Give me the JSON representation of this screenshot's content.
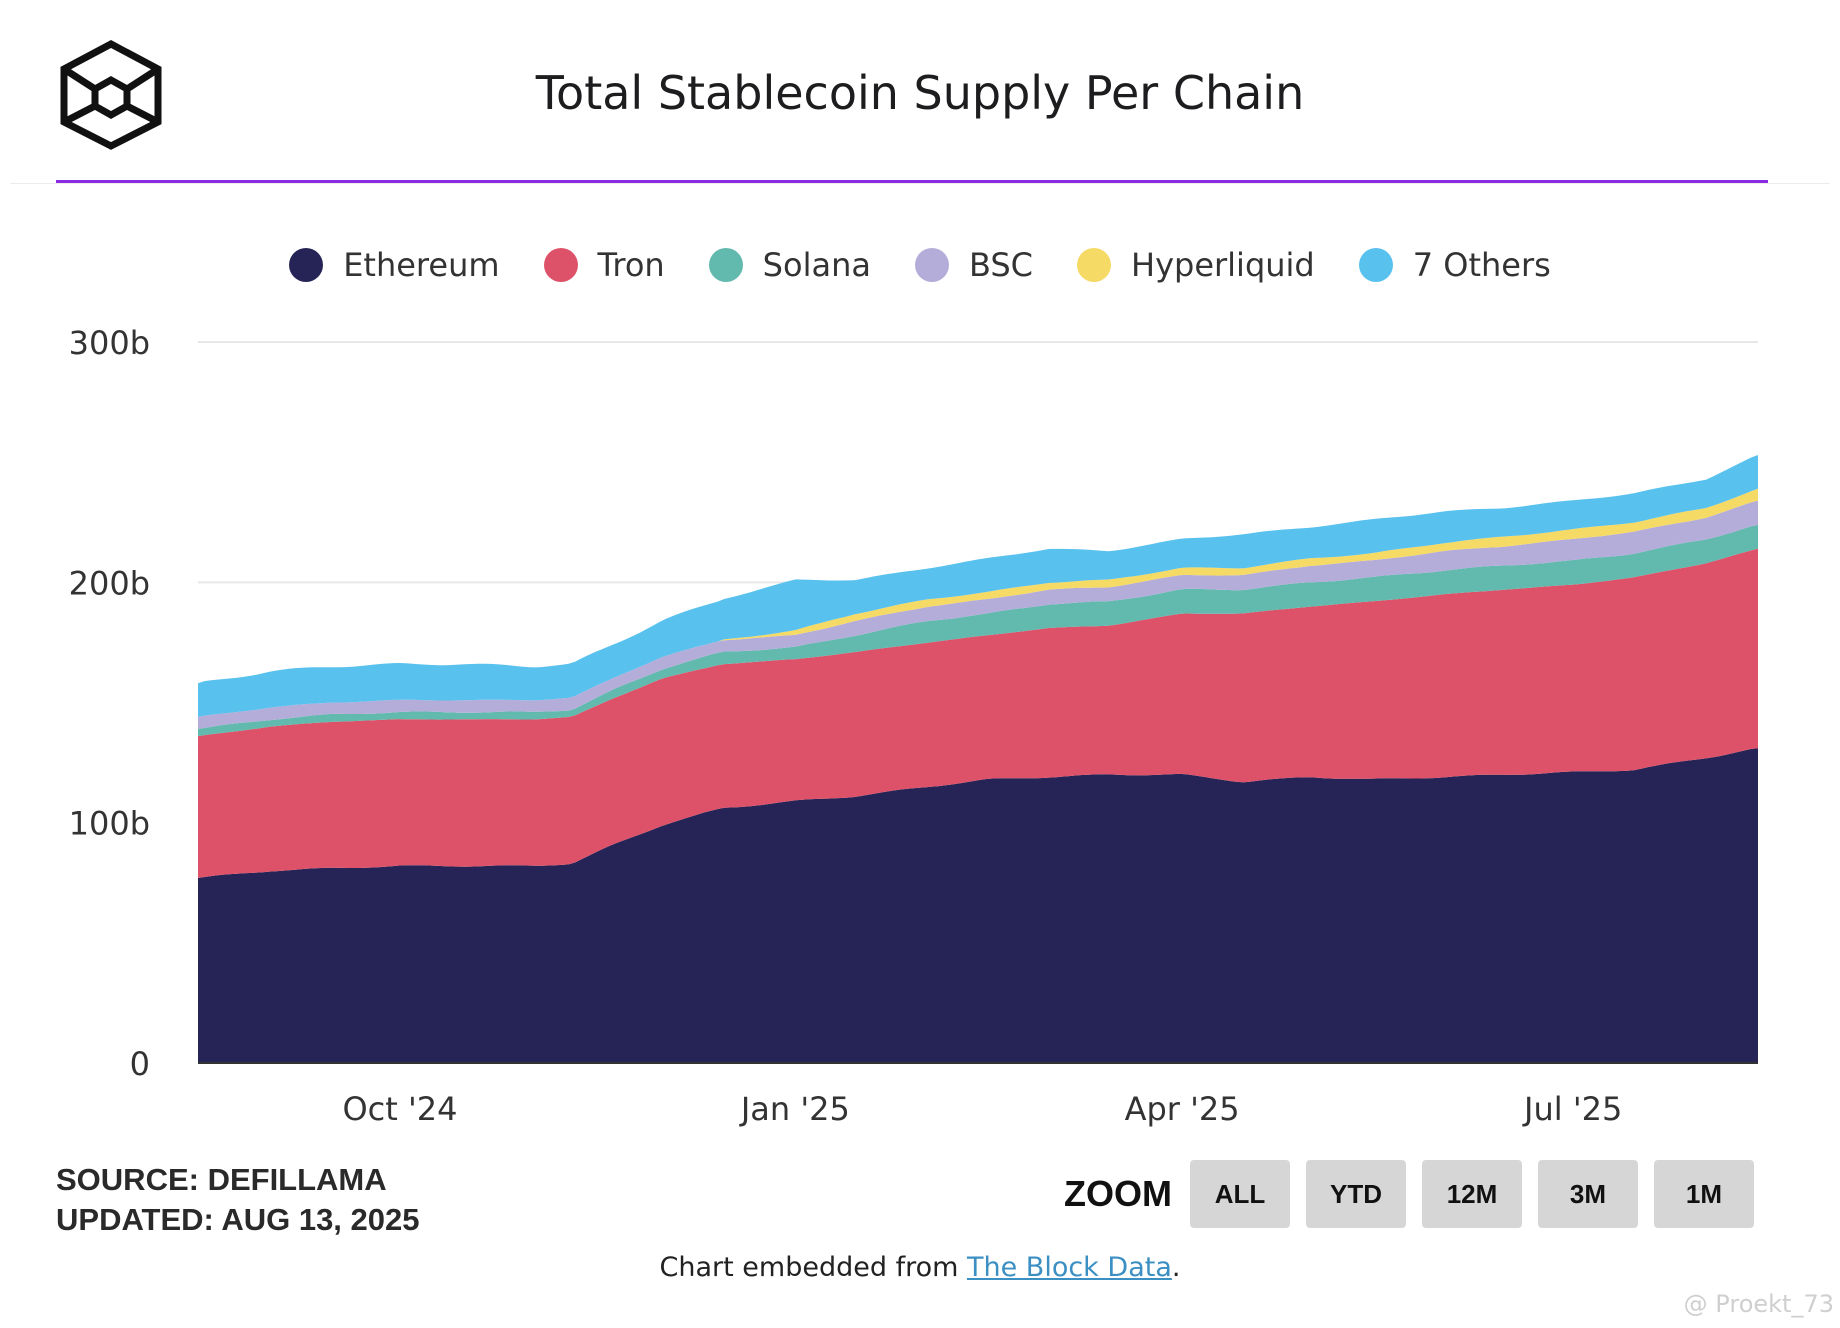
{
  "header": {
    "title": "Total Stablecoin Supply Per Chain",
    "accent_color": "#8a2be2"
  },
  "logo": {
    "icon": "the-block-cube-logo-icon"
  },
  "legend": [
    {
      "label": "Ethereum",
      "color": "#262457"
    },
    {
      "label": "Tron",
      "color": "#de5269"
    },
    {
      "label": "Solana",
      "color": "#62b9ae"
    },
    {
      "label": "BSC",
      "color": "#b4add9"
    },
    {
      "label": "Hyperliquid",
      "color": "#f6da66"
    },
    {
      "label": "7 Others",
      "color": "#58c1ee"
    }
  ],
  "chart_data": {
    "type": "area",
    "stacked": true,
    "x": [
      "2024-08-15",
      "2024-09-01",
      "2024-09-15",
      "2024-10-01",
      "2024-10-15",
      "2024-11-01",
      "2024-11-10",
      "2024-11-20",
      "2024-12-01",
      "2024-12-15",
      "2025-01-01",
      "2025-01-15",
      "2025-02-01",
      "2025-02-15",
      "2025-03-01",
      "2025-03-15",
      "2025-04-01",
      "2025-04-15",
      "2025-05-01",
      "2025-05-15",
      "2025-06-01",
      "2025-06-15",
      "2025-07-01",
      "2025-07-15",
      "2025-08-01",
      "2025-08-13"
    ],
    "series": [
      {
        "name": "Ethereum",
        "values": [
          77,
          80,
          81,
          82,
          82,
          82,
          83,
          91,
          99,
          106,
          109,
          111,
          115,
          118,
          119,
          120,
          120,
          117,
          119,
          118,
          119,
          120,
          121,
          122,
          127,
          131
        ]
      },
      {
        "name": "Tron",
        "values": [
          59,
          60,
          61,
          61,
          61,
          61,
          61,
          61,
          61,
          60,
          59,
          60,
          60,
          60,
          62,
          62,
          67,
          70,
          71,
          74,
          76,
          77,
          78,
          80,
          81,
          83
        ]
      },
      {
        "name": "Solana",
        "values": [
          3,
          3,
          3,
          3,
          3,
          3,
          3,
          3.5,
          4,
          5,
          5,
          7,
          9,
          9,
          10,
          10,
          10,
          10,
          10,
          10,
          10,
          10,
          10,
          10,
          10,
          10
        ]
      },
      {
        "name": "BSC",
        "values": [
          5,
          5,
          5,
          5,
          5,
          5,
          5,
          5,
          5,
          5,
          5,
          6,
          6,
          6,
          6,
          6,
          6,
          6,
          7,
          7,
          8,
          8,
          9,
          9,
          9,
          10
        ]
      },
      {
        "name": "Hyperliquid",
        "values": [
          0,
          0,
          0,
          0,
          0,
          0,
          0,
          0,
          0,
          0,
          2,
          3,
          3,
          3,
          3,
          3,
          3,
          3,
          3,
          3,
          3.5,
          4,
          4,
          4,
          4,
          5
        ]
      },
      {
        "name": "7 Others",
        "values": [
          14,
          15,
          15,
          15,
          15,
          14,
          14,
          14,
          15,
          17,
          21,
          14,
          13,
          14,
          14,
          12,
          12,
          14,
          13,
          14,
          13,
          12,
          12,
          12,
          12,
          14
        ]
      }
    ],
    "x_ticks": [
      "Oct '24",
      "Jan '25",
      "Apr '25",
      "Jul '25"
    ],
    "x_tick_dates": [
      "2024-10-01",
      "2025-01-01",
      "2025-04-01",
      "2025-07-01"
    ],
    "y_ticks": [
      "0",
      "100b",
      "200b",
      "300b"
    ],
    "y_tick_values": [
      0,
      100,
      200,
      300
    ],
    "ylim": [
      0,
      300
    ],
    "grid": true,
    "legend_position": "top"
  },
  "footer": {
    "source": "SOURCE: DEFILLAMA",
    "updated": "UPDATED: AUG 13, 2025",
    "zoom_label": "ZOOM",
    "zoom_buttons": [
      "ALL",
      "YTD",
      "12M",
      "3M",
      "1M"
    ],
    "embed_prefix": "Chart embedded from ",
    "embed_link": "The Block Data",
    "embed_suffix": ".",
    "watermark": "@ Proekt_73"
  }
}
